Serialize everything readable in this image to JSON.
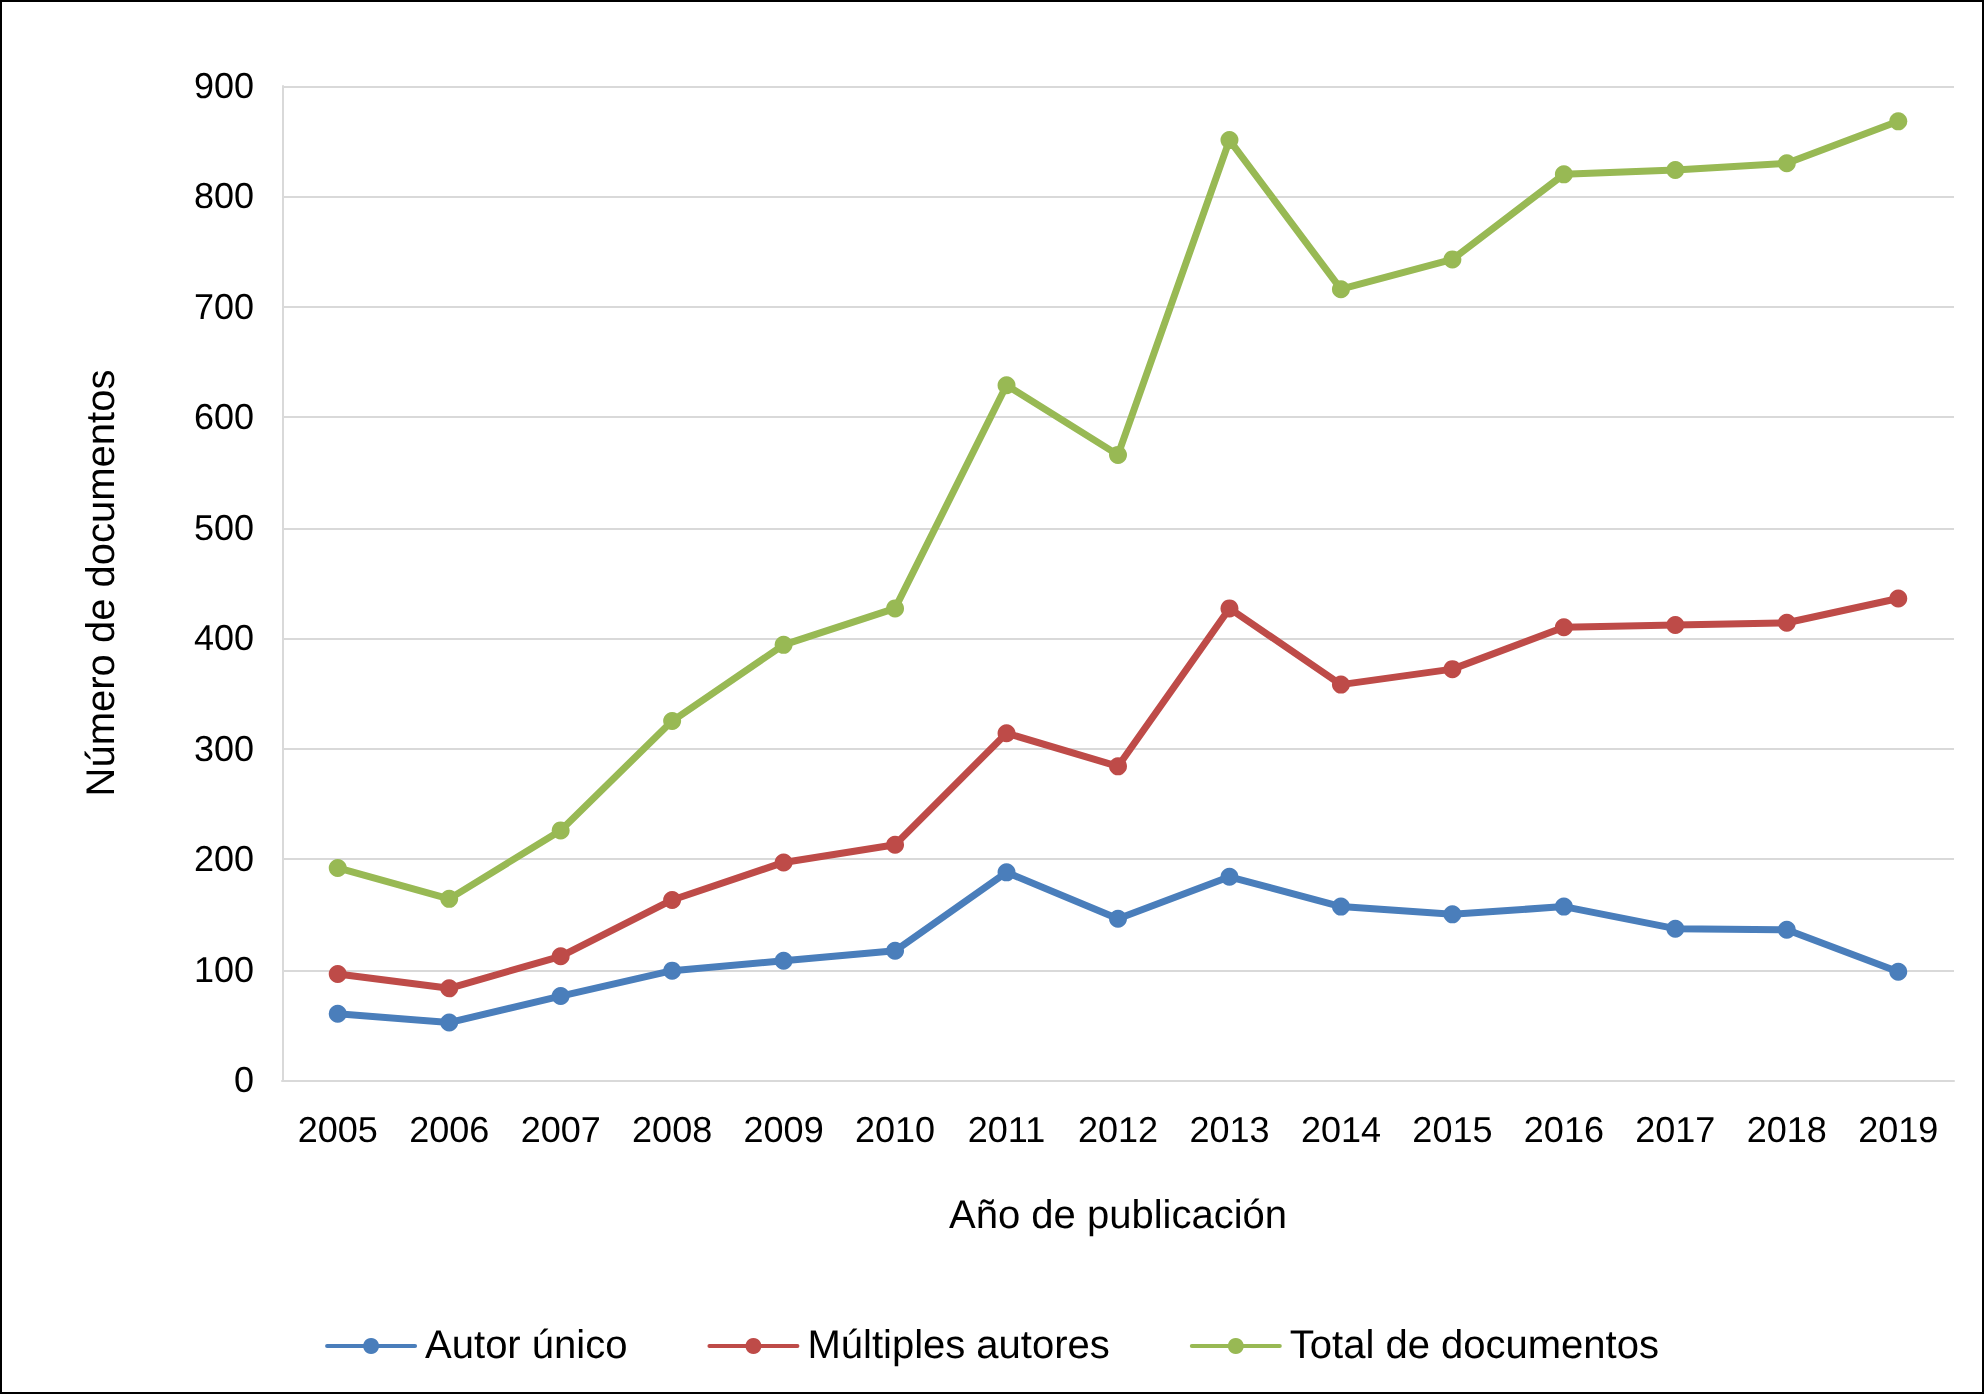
{
  "chart_data": {
    "type": "line",
    "xlabel": "Año de publicación",
    "ylabel": "Número de documentos",
    "categories": [
      "2005",
      "2006",
      "2007",
      "2008",
      "2009",
      "2010",
      "2011",
      "2012",
      "2013",
      "2014",
      "2015",
      "2016",
      "2017",
      "2018",
      "2019"
    ],
    "series": [
      {
        "name": "Autor único",
        "color": "#4a7ebb",
        "values": [
          60,
          52,
          76,
          99,
          108,
          117,
          188,
          146,
          184,
          157,
          150,
          157,
          137,
          136,
          98
        ]
      },
      {
        "name": "Múltiples autores",
        "color": "#be4b48",
        "values": [
          96,
          83,
          112,
          163,
          197,
          213,
          314,
          284,
          427,
          358,
          372,
          410,
          412,
          414,
          436
        ]
      },
      {
        "name": "Total de documentos",
        "color": "#98b954",
        "values": [
          192,
          164,
          226,
          325,
          394,
          427,
          629,
          566,
          851,
          716,
          743,
          820,
          824,
          830,
          868
        ]
      }
    ],
    "ylim": [
      0,
      900
    ],
    "yticks": [
      0,
      100,
      200,
      300,
      400,
      500,
      600,
      700,
      800,
      900
    ],
    "grid": "y",
    "legend": "bottom",
    "marker": "circle",
    "line_style": "solid"
  }
}
